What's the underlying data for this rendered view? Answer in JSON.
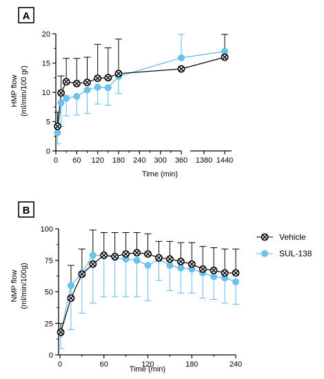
{
  "colors": {
    "vehicle": "#000000",
    "sul": "#5bb8ea",
    "sul_fill": "#6ec2ee"
  },
  "legend": {
    "vehicle": "Vehicle",
    "sul": "SUL-138"
  },
  "chart_data": [
    {
      "type": "line",
      "panel": "A",
      "xlabel": "Time (min)",
      "ylabel": "HMP flow (ml/min/100 gr)",
      "ylabel_lines": [
        "HMP flow",
        "(ml/min/100 gr)"
      ],
      "ylim": [
        0,
        20
      ],
      "yticks": [
        0,
        5,
        10,
        15,
        20
      ],
      "x_segments": [
        {
          "range": [
            0,
            360
          ],
          "ticks": [
            0,
            60,
            120,
            180,
            240,
            300,
            360
          ]
        },
        {
          "range": [
            1340,
            1460
          ],
          "ticks": [
            1380,
            1440
          ]
        }
      ],
      "x_break": "between 360 and 1380",
      "grid": false,
      "series": [
        {
          "name": "Vehicle",
          "x": [
            5,
            15,
            30,
            60,
            90,
            120,
            150,
            180,
            360,
            1440
          ],
          "y": [
            4.2,
            9.9,
            11.8,
            11.5,
            11.7,
            12.4,
            12.5,
            13.2,
            14.0,
            16.0
          ],
          "err_upper": [
            6.6,
            12.8,
            15.8,
            15.8,
            16.0,
            18.2,
            17.6,
            19.1,
            14.0,
            19.9
          ]
        },
        {
          "name": "SUL-138",
          "x": [
            5,
            15,
            30,
            60,
            90,
            120,
            150,
            180,
            360,
            1440
          ],
          "y": [
            3.1,
            8.2,
            9.0,
            9.3,
            10.4,
            10.9,
            10.8,
            12.7,
            15.9,
            17.0
          ],
          "err_lower": [
            1.2,
            4.2,
            6.0,
            6.1,
            6.4,
            8.0,
            7.8,
            9.8,
            15.9,
            17.0
          ],
          "err_upper": [
            3.1,
            8.2,
            9.0,
            9.3,
            10.4,
            10.9,
            10.8,
            12.7,
            19.9,
            17.0
          ]
        }
      ]
    },
    {
      "type": "line",
      "panel": "B",
      "xlabel": "Time (min)",
      "ylabel": "NMP flow (ml/min/100g)",
      "ylabel_lines": [
        "NMP flow",
        "(ml/min/100g)"
      ],
      "ylim": [
        0,
        100
      ],
      "yticks": [
        0,
        25,
        50,
        75,
        100
      ],
      "xlim": [
        0,
        240
      ],
      "xticks": [
        0,
        60,
        120,
        180,
        240
      ],
      "grid": false,
      "legend_position": "right",
      "series": [
        {
          "name": "Vehicle",
          "x": [
            1,
            15,
            30,
            45,
            60,
            75,
            90,
            105,
            120,
            135,
            150,
            165,
            180,
            195,
            210,
            225,
            240
          ],
          "y": [
            18,
            45,
            64,
            72,
            79,
            78,
            80,
            81,
            80,
            77,
            76,
            74,
            72,
            68,
            67,
            65,
            65
          ],
          "err_upper": [
            25,
            71,
            84,
            99,
            97,
            97,
            97,
            97,
            96,
            90,
            90,
            89,
            89,
            86,
            85,
            84,
            84
          ]
        },
        {
          "name": "SUL-138",
          "x": [
            1,
            15,
            30,
            45,
            60,
            75,
            90,
            105,
            120,
            135,
            150,
            165,
            180,
            195,
            210,
            225,
            240
          ],
          "y": [
            17,
            55,
            65,
            79,
            79,
            77,
            76,
            75,
            71,
            76,
            71,
            69,
            68,
            65,
            62,
            61,
            58
          ],
          "err_lower": [
            5,
            20,
            33,
            41,
            46,
            46,
            46,
            46,
            43,
            59,
            51,
            49,
            49,
            45,
            44,
            41,
            40
          ]
        }
      ]
    }
  ]
}
